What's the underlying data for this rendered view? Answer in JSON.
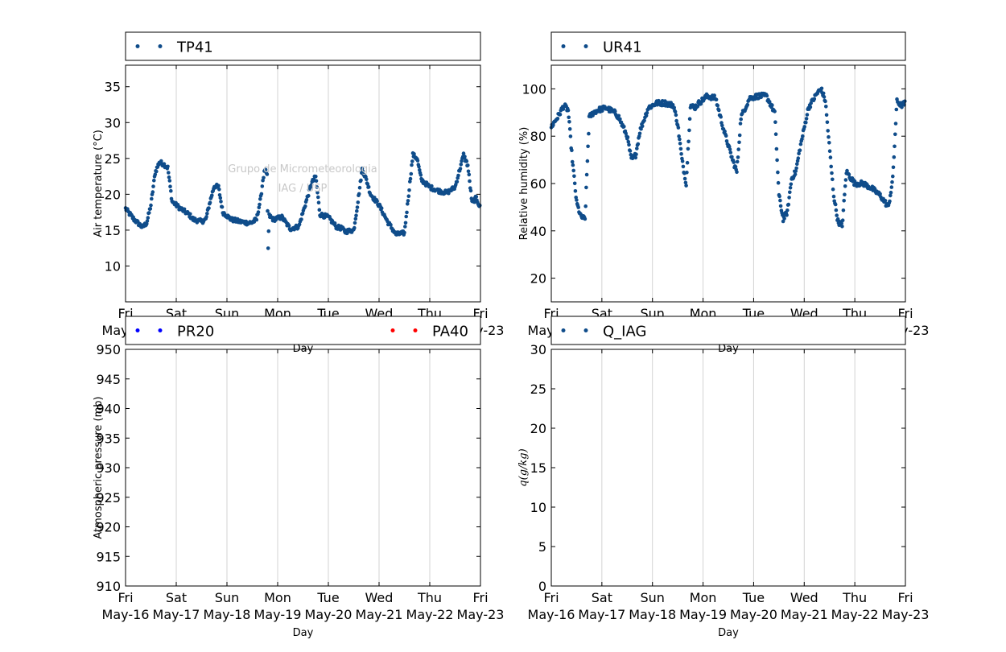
{
  "figure": {
    "watermark_lines": [
      "Grupo de Micrometeorologia",
      "IAG / USP"
    ],
    "x_ticks": [
      [
        "Fri",
        "May-16"
      ],
      [
        "Sat",
        "May-17"
      ],
      [
        "Sun",
        "May-18"
      ],
      [
        "Mon",
        "May-19"
      ],
      [
        "Tue",
        "May-20"
      ],
      [
        "Wed",
        "May-21"
      ],
      [
        "Thu",
        "May-22"
      ],
      [
        "Fri",
        "May-23"
      ]
    ],
    "x_domain": [
      "2014-05-16",
      "2014-05-23"
    ],
    "grid": "vertical, at each day",
    "colors": {
      "navy": "#0f4c8a",
      "blue": "#0000ff",
      "red": "#ff0000",
      "grid": "#d3d3d3",
      "watermark": "#c8c8c8"
    }
  },
  "chart_data": [
    {
      "id": "temp",
      "type": "scatter",
      "ylabel": "Air temperature (°C)",
      "xlabel": "Day",
      "ylim": [
        5,
        38
      ],
      "yticks": [
        10,
        15,
        20,
        25,
        30,
        35
      ],
      "legend": [
        {
          "name": "TP41",
          "color": "#0f4c8a"
        }
      ],
      "series": [
        {
          "name": "TP41",
          "color": "#0f4c8a",
          "x": [
            "05-16 00:00",
            "05-16 04:00",
            "05-16 08:00",
            "05-16 10:00",
            "05-16 12:00",
            "05-16 14:00",
            "05-16 16:00",
            "05-16 18:00",
            "05-16 20:00",
            "05-16 22:00",
            "05-17 02:00",
            "05-17 06:00",
            "05-17 08:00",
            "05-17 12:00",
            "05-17 14:00",
            "05-17 16:00",
            "05-17 18:00",
            "05-17 20:00",
            "05-17 22:00",
            "05-18 02:00",
            "05-18 06:00",
            "05-18 10:00",
            "05-18 12:00",
            "05-18 14:00",
            "05-18 16:00",
            "05-18 17:00",
            "05-18 18:00",
            "05-18 19:00",
            "05-18 19:30",
            "05-18 20:00",
            "05-18 22:00",
            "05-19 02:00",
            "05-19 06:00",
            "05-19 10:00",
            "05-19 14:00",
            "05-19 16:00",
            "05-19 18:00",
            "05-19 20:00",
            "05-20 00:00",
            "05-20 04:00",
            "05-20 06:00",
            "05-20 08:00",
            "05-20 12:00",
            "05-20 14:00",
            "05-20 16:00",
            "05-20 18:00",
            "05-20 20:00",
            "05-21 00:00",
            "05-21 04:00",
            "05-21 08:00",
            "05-21 12:00",
            "05-21 14:00",
            "05-21 16:00",
            "05-21 18:00",
            "05-21 20:00",
            "05-22 00:00",
            "05-22 04:00",
            "05-22 08:00",
            "05-22 12:00",
            "05-22 16:00",
            "05-22 18:00",
            "05-22 20:00",
            "05-22 22:00",
            "05-23 00:00"
          ],
          "y": [
            18,
            16.5,
            15.4,
            16,
            18.5,
            23,
            24.5,
            24.2,
            23.7,
            19,
            18,
            17.2,
            16.5,
            16.2,
            16.5,
            19,
            21.2,
            21,
            17.5,
            16.5,
            16.2,
            16,
            16.1,
            16.5,
            19.5,
            22,
            23.5,
            22.5,
            12.5,
            17,
            16.5,
            16.8,
            15.2,
            15.5,
            19.5,
            21.5,
            22.5,
            17.2,
            16.8,
            15.4,
            15.3,
            14.8,
            15,
            19,
            23.5,
            22,
            20,
            18.5,
            16.2,
            14.4,
            14.6,
            20,
            25.5,
            25,
            22,
            21,
            20.5,
            20.2,
            21,
            25.5,
            24,
            18.8,
            19.5,
            18
          ]
        }
      ]
    },
    {
      "id": "rh",
      "type": "scatter",
      "ylabel": "Relative humidity (%)",
      "xlabel": "Day",
      "ylim": [
        10,
        110
      ],
      "yticks": [
        20,
        40,
        60,
        80,
        100
      ],
      "legend": [
        {
          "name": "UR41",
          "color": "#0f4c8a"
        }
      ],
      "series": [
        {
          "name": "UR41",
          "color": "#0f4c8a",
          "x": [
            "05-16 00:00",
            "05-16 03:00",
            "05-16 06:00",
            "05-16 08:00",
            "05-16 10:00",
            "05-16 12:00",
            "05-16 14:00",
            "05-16 16:00",
            "05-16 18:00",
            "05-16 20:00",
            "05-16 22:00",
            "05-17 02:00",
            "05-17 06:00",
            "05-17 08:00",
            "05-17 12:00",
            "05-17 14:00",
            "05-17 16:00",
            "05-17 18:00",
            "05-17 22:00",
            "05-18 02:00",
            "05-18 06:00",
            "05-18 10:00",
            "05-18 12:00",
            "05-18 14:00",
            "05-18 16:00",
            "05-18 18:00",
            "05-18 20:00",
            "05-18 22:00",
            "05-19 02:00",
            "05-19 06:00",
            "05-19 10:00",
            "05-19 14:00",
            "05-19 16:00",
            "05-19 18:00",
            "05-19 22:00",
            "05-20 02:00",
            "05-20 06:00",
            "05-20 10:00",
            "05-20 12:00",
            "05-20 14:00",
            "05-20 16:00",
            "05-20 18:00",
            "05-20 20:00",
            "05-20 22:00",
            "05-21 02:00",
            "05-21 06:00",
            "05-21 08:00",
            "05-21 10:00",
            "05-21 14:00",
            "05-21 16:00",
            "05-21 18:00",
            "05-21 20:00",
            "05-22 00:00",
            "05-22 04:00",
            "05-22 08:00",
            "05-22 12:00",
            "05-22 16:00",
            "05-22 18:00",
            "05-22 20:00",
            "05-22 22:00",
            "05-23 00:00"
          ],
          "y": [
            84,
            88,
            93,
            91,
            70,
            52,
            46,
            45,
            88,
            90,
            91,
            92,
            90,
            88,
            80,
            70,
            72,
            82,
            92,
            94,
            94,
            93,
            85,
            70,
            60,
            93,
            92,
            94,
            97,
            96,
            82,
            70,
            65,
            88,
            96,
            97,
            97,
            90,
            55,
            45,
            48,
            62,
            65,
            75,
            92,
            98,
            100,
            95,
            55,
            44,
            42,
            65,
            60,
            60,
            58,
            55,
            50,
            62,
            95,
            93,
            94
          ]
        }
      ]
    },
    {
      "id": "pressure",
      "type": "scatter",
      "ylabel": "Atmospheric pressure (mb)",
      "xlabel": "Day",
      "ylim": [
        910,
        950
      ],
      "yticks": [
        910,
        915,
        920,
        925,
        930,
        935,
        940,
        945,
        950
      ],
      "legend": [
        {
          "name": "PR20",
          "color": "#0000ff"
        },
        {
          "name": "PA40",
          "color": "#ff0000"
        }
      ],
      "series": []
    },
    {
      "id": "q",
      "type": "scatter",
      "ylabel": "q(g/kg)",
      "xlabel": "Day",
      "ylim": [
        0,
        30
      ],
      "yticks": [
        0,
        5,
        10,
        15,
        20,
        25,
        30
      ],
      "legend": [
        {
          "name": "Q_IAG",
          "color": "#0f4c8a"
        }
      ],
      "series": []
    }
  ]
}
